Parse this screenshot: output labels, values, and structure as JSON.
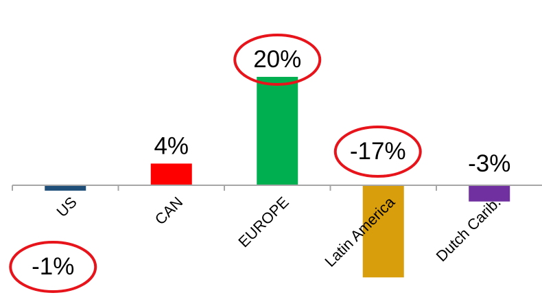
{
  "chart_data": {
    "type": "bar",
    "categories": [
      "US",
      "CAN",
      "EUROPE",
      "Latin America",
      "Dutch Carib."
    ],
    "values": [
      -1,
      4,
      20,
      -17,
      -3
    ],
    "value_labels": [
      "-1%",
      "4%",
      "20%",
      "-17%",
      "-3%"
    ],
    "colors": [
      "#1F4E79",
      "#FF0000",
      "#00B050",
      "#D99E0B",
      "#7030A0"
    ],
    "highlight_color": "#E8141B",
    "highlighted": [
      "US",
      "EUROPE",
      "Latin America"
    ],
    "axis_color": "#A6A6A6",
    "ylim": [
      -18,
      20
    ],
    "grid": false,
    "title": "",
    "xlabel": "",
    "ylabel": ""
  }
}
